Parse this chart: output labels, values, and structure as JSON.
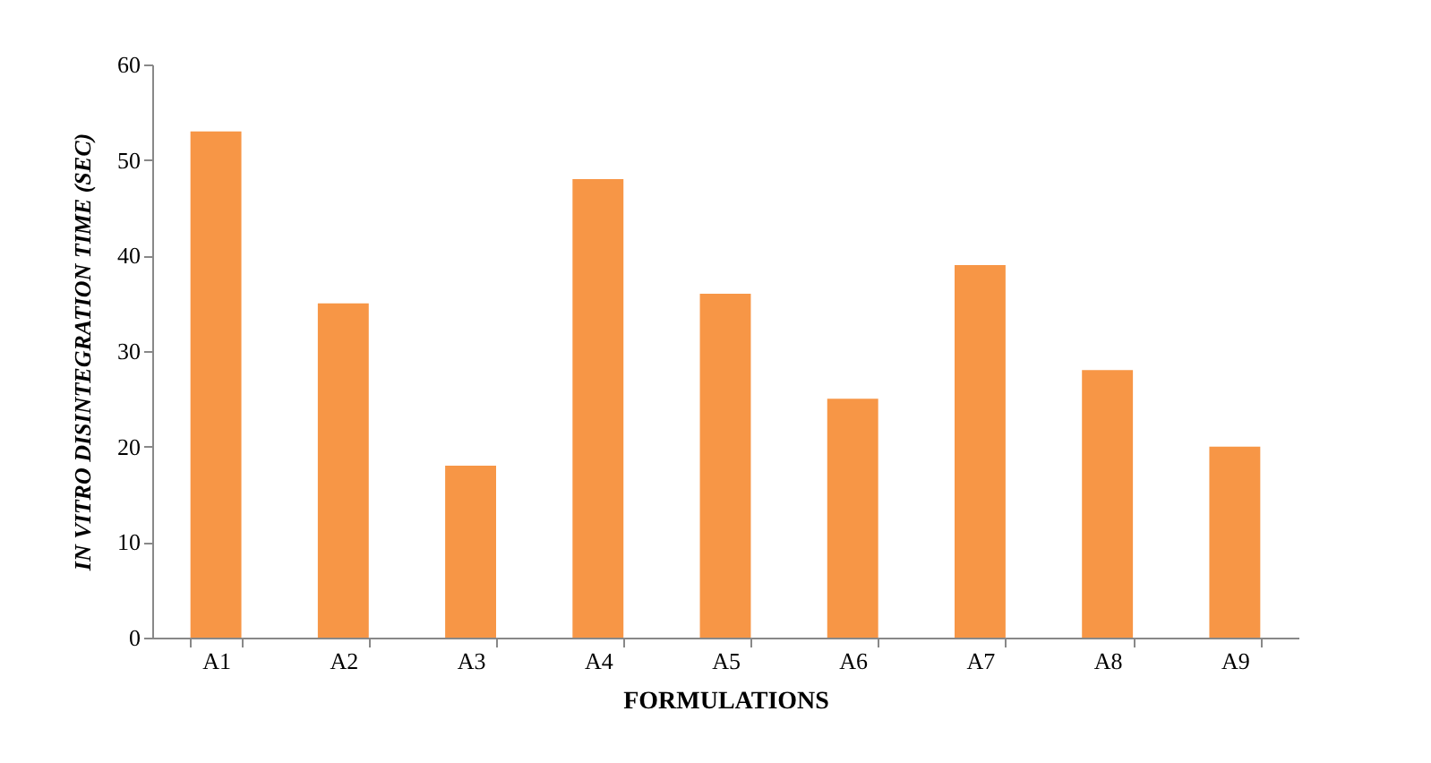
{
  "chart_data": {
    "type": "bar",
    "xlabel": "FORMULATIONS",
    "ylabel": "IN VITRO DISINTEGRATION TIME (SEC)",
    "categories": [
      "A1",
      "A2",
      "A3",
      "A4",
      "A5",
      "A6",
      "A7",
      "A8",
      "A9"
    ],
    "values": [
      53,
      35,
      18,
      48,
      36,
      25,
      39,
      28,
      20
    ],
    "color": "#f79646",
    "ylim": [
      0,
      60
    ],
    "yticks": [
      0,
      10,
      20,
      30,
      40,
      50,
      60
    ],
    "grid": false
  }
}
